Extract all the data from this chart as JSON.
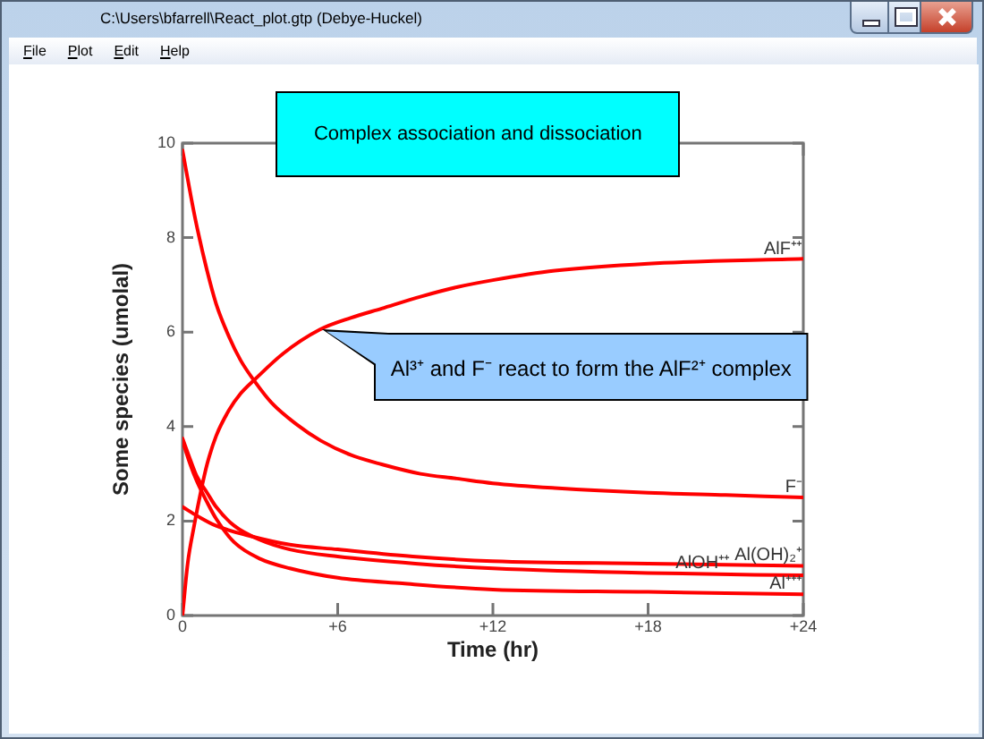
{
  "chart_data": {
    "type": "line",
    "title": "Complex association and dissociation",
    "xlabel": "Time (hr)",
    "ylabel": "Some species (umolal)",
    "xlim": [
      0,
      24
    ],
    "xticks": [
      0,
      {
        "value": 6,
        "label": "+6"
      },
      {
        "value": 12,
        "label": "+12"
      },
      {
        "value": 18,
        "label": "+18"
      },
      {
        "value": 24,
        "label": "+24"
      }
    ],
    "ylim": [
      0,
      10
    ],
    "yticks": [
      0,
      2,
      4,
      6,
      8,
      10
    ],
    "annotations": [
      "C:\\Users\\bfarrell\\React_plot.gtp (Debye-Huckel)",
      "File",
      "Plot",
      "Edit",
      "Help",
      "Al³⁺ and F⁻ react to form the AlF²⁺ complex"
    ],
    "series": [
      {
        "name": "AlF⁺⁺",
        "color": "#ff0000",
        "x": [
          0,
          0.2,
          0.45,
          0.7,
          0.95,
          1.3,
          1.8,
          2.25,
          2.8,
          3.9,
          5.3,
          6.5,
          7.7,
          9.2,
          10.6,
          12,
          14.4,
          18,
          24
        ],
        "values": [
          0,
          1.1,
          1.9,
          2.6,
          3.2,
          3.8,
          4.35,
          4.7,
          5,
          5.55,
          6.05,
          6.3,
          6.5,
          6.75,
          6.95,
          7.1,
          7.3,
          7.45,
          7.55
        ]
      },
      {
        "name": "F⁻",
        "color": "#ff0000",
        "x": [
          0,
          0.35,
          0.55,
          0.95,
          1.3,
          1.8,
          2.25,
          2.8,
          3.45,
          4.4,
          5.35,
          6.5,
          7.7,
          9.2,
          10.6,
          12,
          14.4,
          18,
          21,
          24
        ],
        "values": [
          9.85,
          8.8,
          8.25,
          7.3,
          6.6,
          5.9,
          5.4,
          4.95,
          4.5,
          4.05,
          3.7,
          3.4,
          3.2,
          3,
          2.9,
          2.8,
          2.7,
          2.6,
          2.55,
          2.5
        ]
      },
      {
        "name": "AlOH⁺⁺",
        "color": "#ff0000",
        "x": [
          0,
          0.3,
          0.55,
          0.95,
          1.3,
          2,
          3,
          4.15,
          6,
          9,
          12,
          18,
          24
        ],
        "values": [
          3.75,
          3.3,
          2.95,
          2.6,
          2.3,
          1.9,
          1.6,
          1.4,
          1.25,
          1.1,
          1,
          0.9,
          0.85
        ]
      },
      {
        "name": "Al(OH)₂⁺",
        "color": "#ff0000",
        "x": [
          0,
          0.6,
          1.3,
          2.5,
          4.15,
          6,
          8.9,
          12,
          18,
          24
        ],
        "values": [
          2.3,
          2.1,
          1.9,
          1.7,
          1.5,
          1.4,
          1.25,
          1.15,
          1.1,
          1.05
        ]
      },
      {
        "name": "Al⁺⁺⁺",
        "color": "#ff0000",
        "x": [
          0,
          0.3,
          0.55,
          0.95,
          1.3,
          2,
          3,
          4.15,
          6,
          8.5,
          12,
          18,
          24
        ],
        "values": [
          3.7,
          3.2,
          2.85,
          2.4,
          2.05,
          1.55,
          1.2,
          1,
          0.8,
          0.68,
          0.55,
          0.5,
          0.45
        ]
      }
    ]
  }
}
